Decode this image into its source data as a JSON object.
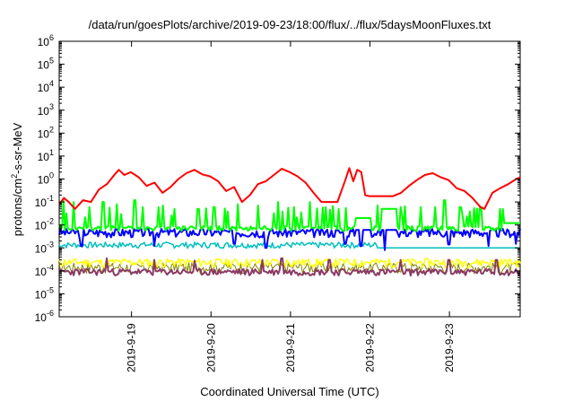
{
  "chart_data": {
    "type": "line",
    "title": "/data/run/goesPlots/archive/2019-09-23/18:00/flux/../flux/5daysMoonFluxes.txt",
    "xlabel": "Coordinated Universal Time (UTC)",
    "ylabel": {
      "prefix": "protons/cm",
      "sup": "2",
      "suffix": "-s-sr-MeV"
    },
    "y_scale": "log",
    "ylim": [
      1e-06,
      1000000.0
    ],
    "y_ticks": [
      {
        "value": -6,
        "base": "10",
        "exp": "-6"
      },
      {
        "value": -5,
        "base": "10",
        "exp": "-5"
      },
      {
        "value": -4,
        "base": "10",
        "exp": "-4"
      },
      {
        "value": -3,
        "base": "10",
        "exp": "-3"
      },
      {
        "value": -2,
        "base": "10",
        "exp": "-2"
      },
      {
        "value": -1,
        "base": "10",
        "exp": "-1"
      },
      {
        "value": 0,
        "base": "10",
        "exp": "0"
      },
      {
        "value": 1,
        "base": "10",
        "exp": "1"
      },
      {
        "value": 2,
        "base": "10",
        "exp": "2"
      },
      {
        "value": 3,
        "base": "10",
        "exp": "3"
      },
      {
        "value": 4,
        "base": "10",
        "exp": "4"
      },
      {
        "value": 5,
        "base": "10",
        "exp": "5"
      },
      {
        "value": 6,
        "base": "10",
        "exp": "6"
      }
    ],
    "xlim_days": [
      "2019-09-18 02:00",
      "2019-09-23 20:00"
    ],
    "x_ticks": [
      "2019-9-19",
      "2019-9-20",
      "2019-9-21",
      "2019-9-22",
      "2019-9-23"
    ],
    "grid": false,
    "legend": "none",
    "series": [
      {
        "color": "#ff0000",
        "width": 2,
        "points": [
          [
            0,
            0.08
          ],
          [
            0.06,
            0.15
          ],
          [
            0.12,
            0.1
          ],
          [
            0.2,
            0.05
          ],
          [
            0.3,
            0.12
          ],
          [
            0.4,
            0.1
          ],
          [
            0.5,
            0.35
          ],
          [
            0.6,
            0.6
          ],
          [
            0.7,
            1.6
          ],
          [
            0.75,
            2.5
          ],
          [
            0.82,
            1.5
          ],
          [
            0.9,
            2.0
          ],
          [
            1.0,
            1.2
          ],
          [
            1.1,
            0.5
          ],
          [
            1.2,
            0.7
          ],
          [
            1.3,
            0.25
          ],
          [
            1.4,
            0.45
          ],
          [
            1.5,
            1.0
          ],
          [
            1.6,
            1.8
          ],
          [
            1.7,
            2.5
          ],
          [
            1.8,
            1.6
          ],
          [
            1.9,
            1.3
          ],
          [
            2.0,
            0.8
          ],
          [
            2.1,
            0.3
          ],
          [
            2.2,
            0.45
          ],
          [
            2.3,
            0.1
          ],
          [
            2.4,
            0.2
          ],
          [
            2.5,
            0.6
          ],
          [
            2.6,
            0.8
          ],
          [
            2.7,
            1.5
          ],
          [
            2.8,
            2.8
          ],
          [
            2.9,
            2.0
          ],
          [
            3.0,
            1.3
          ],
          [
            3.1,
            0.7
          ],
          [
            3.2,
            0.25
          ],
          [
            3.3,
            0.1
          ],
          [
            3.4,
            0.1
          ],
          [
            3.5,
            0.1
          ],
          [
            3.6,
            0.9
          ],
          [
            3.65,
            3.0
          ],
          [
            3.7,
            0.8
          ],
          [
            3.75,
            2.5
          ],
          [
            3.8,
            2.0
          ],
          [
            3.85,
            0.2
          ],
          [
            3.9,
            0.18
          ],
          [
            4.0,
            0.18
          ],
          [
            4.1,
            0.18
          ],
          [
            4.2,
            0.18
          ],
          [
            4.3,
            0.25
          ],
          [
            4.4,
            0.5
          ],
          [
            4.5,
            0.9
          ],
          [
            4.6,
            1.5
          ],
          [
            4.7,
            1.8
          ],
          [
            4.8,
            1.2
          ],
          [
            4.9,
            0.9
          ],
          [
            5.0,
            0.4
          ],
          [
            5.1,
            0.3
          ],
          [
            5.2,
            0.15
          ],
          [
            5.3,
            0.06
          ],
          [
            5.35,
            0.05
          ],
          [
            5.45,
            0.25
          ],
          [
            5.55,
            0.4
          ],
          [
            5.65,
            0.6
          ],
          [
            5.75,
            1.0
          ],
          [
            5.8,
            1.2
          ]
        ]
      },
      {
        "color": "#00ff00",
        "width": 2,
        "base": 0.006,
        "spikes": [
          [
            0.05,
            0.12
          ],
          [
            0.18,
            0.1
          ],
          [
            0.38,
            0.06
          ],
          [
            0.55,
            0.1
          ],
          [
            0.72,
            0.08
          ],
          [
            0.95,
            0.12
          ],
          [
            1.05,
            0.06
          ],
          [
            1.3,
            0.07
          ],
          [
            1.45,
            0.05
          ],
          [
            1.75,
            0.05
          ],
          [
            1.95,
            0.06
          ],
          [
            2.25,
            0.08
          ],
          [
            2.5,
            0.07
          ],
          [
            2.75,
            0.1
          ],
          [
            2.95,
            0.06
          ],
          [
            3.15,
            0.1
          ],
          [
            3.35,
            0.06
          ],
          [
            4.0,
            0.07
          ],
          [
            4.3,
            0.06
          ],
          [
            4.55,
            0.06
          ],
          [
            4.85,
            0.12
          ],
          [
            5.05,
            0.06
          ],
          [
            5.3,
            0.06
          ],
          [
            5.55,
            0.05
          ]
        ],
        "plateaus": [
          [
            3.72,
            3.92,
            0.02
          ],
          [
            4.05,
            4.25,
            0.05
          ],
          [
            5.6,
            5.8,
            0.012
          ]
        ]
      },
      {
        "color": "#0000ff",
        "width": 2,
        "base": 0.004,
        "amp": 0.004,
        "seed": 3,
        "plateaus": [
          [
            3.72,
            3.92,
            0.006
          ],
          [
            4.05,
            4.25,
            0.006
          ]
        ],
        "dips": [
          [
            0.28,
            0.0012
          ],
          [
            1.2,
            0.0012
          ],
          [
            2.2,
            0.0015
          ],
          [
            2.6,
            0.001
          ],
          [
            3.6,
            0.0015
          ],
          [
            3.8,
            0.0012
          ],
          [
            4.1,
            0.0008
          ],
          [
            4.9,
            0.0014
          ],
          [
            5.4,
            0.0012
          ],
          [
            5.75,
            0.0015
          ]
        ]
      },
      {
        "color": "#00bfbf",
        "width": 1.5,
        "base": 0.0012,
        "amp": 0.0008,
        "seed": 7,
        "plateaus": [
          [
            4.0,
            5.8,
            0.001
          ]
        ]
      },
      {
        "color": "#ffff00",
        "width": 1.5,
        "base": 0.0002,
        "amp": 0.0002,
        "seed": 11
      },
      {
        "color": "#808000",
        "width": 1,
        "base": 0.00012,
        "amp": 0.00015,
        "seed": 17
      },
      {
        "color": "#8b3a62",
        "width": 2,
        "base": 8e-05,
        "amp": 6e-05,
        "seed": 23,
        "spikes": [
          [
            0.6,
            0.00035
          ],
          [
            1.2,
            0.0003
          ],
          [
            1.7,
            0.00028
          ],
          [
            2.55,
            0.0003
          ],
          [
            2.8,
            0.00035
          ],
          [
            3.4,
            0.0003
          ],
          [
            4.3,
            0.0003
          ],
          [
            4.9,
            0.0003
          ],
          [
            5.5,
            0.0003
          ]
        ]
      }
    ]
  }
}
